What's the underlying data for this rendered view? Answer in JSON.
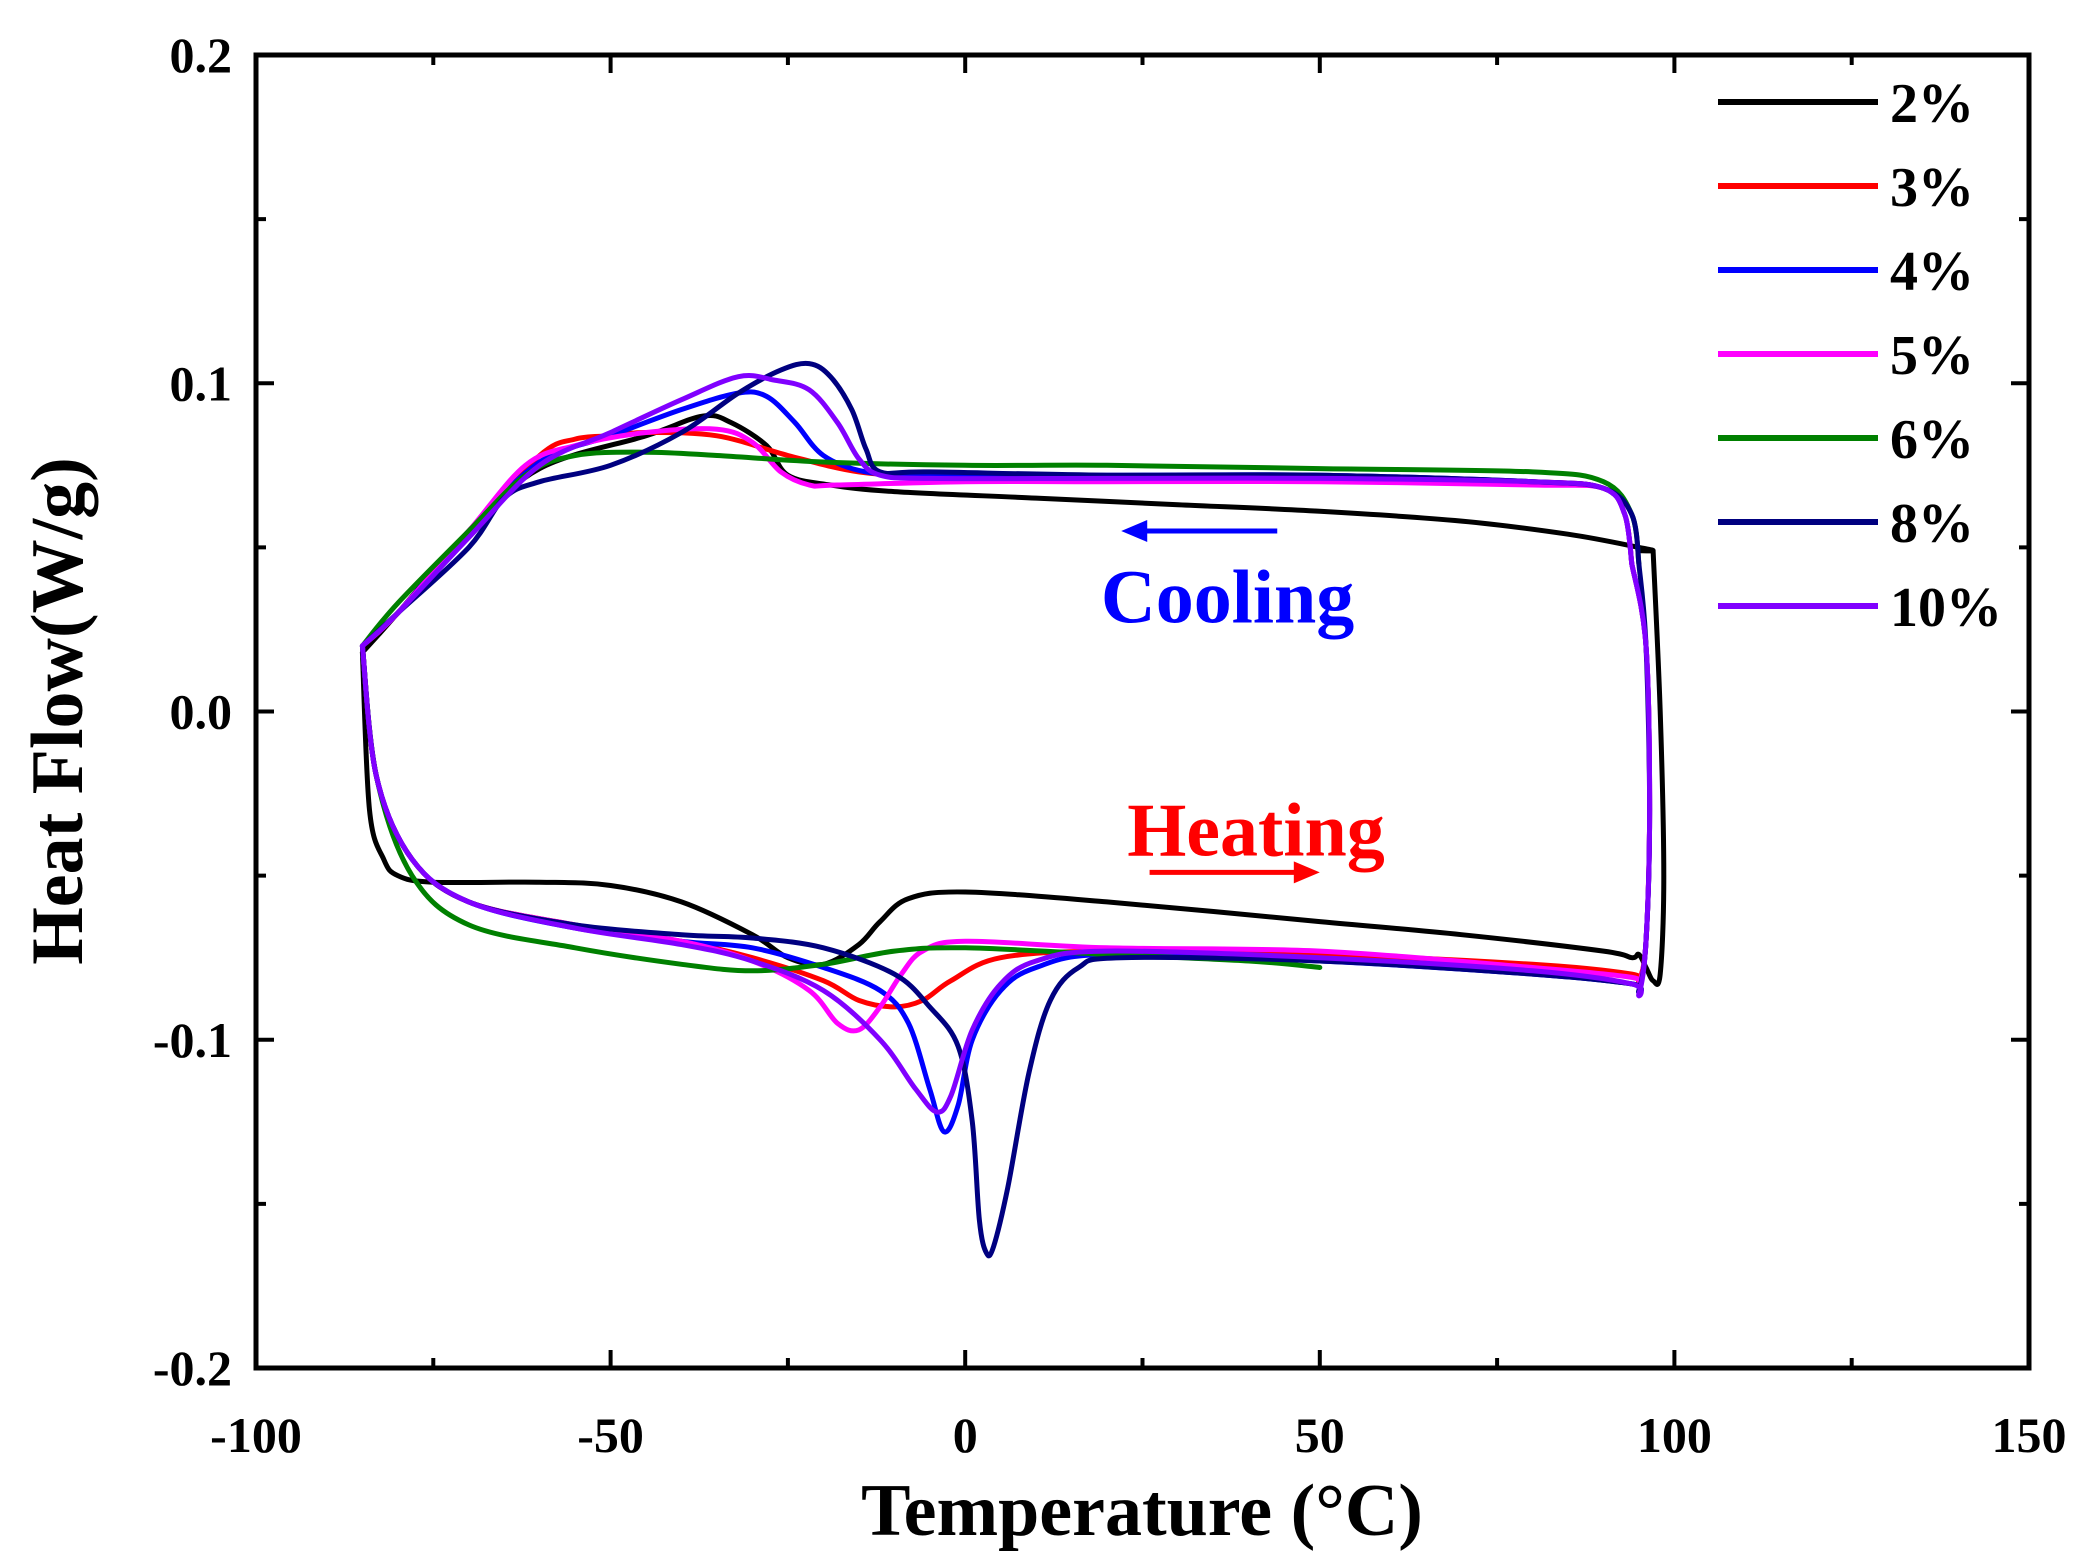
{
  "chart_data": {
    "type": "line",
    "title": "",
    "xlabel": "Temperature (°C)",
    "ylabel": "Heat Flow(W/g)",
    "xlim": [
      -100,
      150
    ],
    "ylim": [
      -0.2,
      0.2
    ],
    "xticks": [
      -100,
      -50,
      0,
      50,
      100,
      150
    ],
    "xtick_labels": [
      "-100",
      "-50",
      "0",
      "50",
      "100",
      "150"
    ],
    "yticks": [
      -0.2,
      -0.1,
      0.0,
      0.1,
      0.2
    ],
    "ytick_labels": [
      "-0.2",
      "-0.1",
      "0.0",
      "0.1",
      "0.2"
    ],
    "grid": false,
    "legend_position": "top-right",
    "annotations": [
      {
        "text": "Cooling",
        "x": 37,
        "y": 0.035,
        "color": "#0000ff",
        "arrow": {
          "from": [
            44,
            0.055
          ],
          "to": [
            22,
            0.055
          ],
          "color": "#0000ff"
        }
      },
      {
        "text": "Heating",
        "x": 41,
        "y": -0.036,
        "color": "#ff0000",
        "arrow": {
          "from": [
            26,
            -0.049
          ],
          "to": [
            50,
            -0.049
          ],
          "color": "#ff0000"
        }
      }
    ],
    "series": [
      {
        "name": "2%",
        "color": "#000000",
        "cooling": [
          [
            95,
            0.049
          ],
          [
            97,
            0.049
          ],
          [
            95,
            0.05
          ],
          [
            85,
            0.054
          ],
          [
            70,
            0.058
          ],
          [
            50,
            0.061
          ],
          [
            30,
            0.063
          ],
          [
            10,
            0.065
          ],
          [
            -10,
            0.067
          ],
          [
            -19,
            0.069
          ],
          [
            -25,
            0.072
          ],
          [
            -28,
            0.081
          ],
          [
            -33,
            0.088
          ],
          [
            -37,
            0.09
          ],
          [
            -45,
            0.084
          ],
          [
            -60,
            0.074
          ],
          [
            -70,
            0.055
          ],
          [
            -80,
            0.03
          ],
          [
            -85,
            0.018
          ]
        ],
        "heating": [
          [
            -85,
            0.018
          ],
          [
            -84,
            -0.03
          ],
          [
            -82,
            -0.045
          ],
          [
            -80,
            -0.05
          ],
          [
            -75,
            -0.052
          ],
          [
            -60,
            -0.052
          ],
          [
            -50,
            -0.053
          ],
          [
            -40,
            -0.058
          ],
          [
            -30,
            -0.068
          ],
          [
            -25,
            -0.075
          ],
          [
            -20,
            -0.077
          ],
          [
            -15,
            -0.071
          ],
          [
            -12,
            -0.064
          ],
          [
            -8,
            -0.057
          ],
          [
            0,
            -0.055
          ],
          [
            20,
            -0.058
          ],
          [
            50,
            -0.064
          ],
          [
            70,
            -0.068
          ],
          [
            90,
            -0.073
          ],
          [
            94,
            -0.075
          ],
          [
            95,
            -0.074
          ],
          [
            96,
            -0.078
          ],
          [
            97,
            -0.082
          ],
          [
            98,
            -0.08
          ],
          [
            98.5,
            -0.05
          ],
          [
            98,
            0.0
          ],
          [
            97,
            0.049
          ]
        ]
      },
      {
        "name": "3%",
        "color": "#ff0000",
        "cooling": [
          [
            94,
            0.045
          ],
          [
            93,
            0.06
          ],
          [
            90,
            0.068
          ],
          [
            80,
            0.07
          ],
          [
            50,
            0.071
          ],
          [
            20,
            0.071
          ],
          [
            -5,
            0.072
          ],
          [
            -15,
            0.073
          ],
          [
            -25,
            0.078
          ],
          [
            -35,
            0.084
          ],
          [
            -45,
            0.085
          ],
          [
            -50,
            0.084
          ],
          [
            -55,
            0.083
          ],
          [
            -60,
            0.078
          ],
          [
            -70,
            0.055
          ],
          [
            -80,
            0.03
          ],
          [
            -85,
            0.02
          ]
        ],
        "heating": [
          [
            -85,
            0.02
          ],
          [
            -83,
            -0.02
          ],
          [
            -78,
            -0.045
          ],
          [
            -70,
            -0.058
          ],
          [
            -55,
            -0.065
          ],
          [
            -40,
            -0.07
          ],
          [
            -30,
            -0.075
          ],
          [
            -20,
            -0.082
          ],
          [
            -15,
            -0.088
          ],
          [
            -10,
            -0.09
          ],
          [
            -6,
            -0.088
          ],
          [
            -2,
            -0.082
          ],
          [
            5,
            -0.075
          ],
          [
            20,
            -0.073
          ],
          [
            50,
            -0.074
          ],
          [
            80,
            -0.077
          ],
          [
            94,
            -0.08
          ],
          [
            95,
            -0.082
          ],
          [
            96,
            -0.07
          ],
          [
            96.5,
            -0.03
          ],
          [
            96,
            0.02
          ],
          [
            94,
            0.045
          ]
        ]
      },
      {
        "name": "4%",
        "color": "#0000ff",
        "cooling": [
          [
            94,
            0.045
          ],
          [
            93,
            0.06
          ],
          [
            90,
            0.068
          ],
          [
            80,
            0.07
          ],
          [
            50,
            0.072
          ],
          [
            20,
            0.072
          ],
          [
            -5,
            0.072
          ],
          [
            -14,
            0.073
          ],
          [
            -20,
            0.078
          ],
          [
            -24,
            0.088
          ],
          [
            -28,
            0.096
          ],
          [
            -32,
            0.097
          ],
          [
            -40,
            0.092
          ],
          [
            -50,
            0.084
          ],
          [
            -60,
            0.076
          ],
          [
            -70,
            0.055
          ],
          [
            -80,
            0.03
          ],
          [
            -85,
            0.02
          ]
        ],
        "heating": [
          [
            -85,
            0.02
          ],
          [
            -83,
            -0.02
          ],
          [
            -78,
            -0.045
          ],
          [
            -70,
            -0.058
          ],
          [
            -55,
            -0.066
          ],
          [
            -40,
            -0.07
          ],
          [
            -30,
            -0.072
          ],
          [
            -20,
            -0.078
          ],
          [
            -12,
            -0.085
          ],
          [
            -8,
            -0.095
          ],
          [
            -5,
            -0.115
          ],
          [
            -3,
            -0.128
          ],
          [
            -1,
            -0.12
          ],
          [
            1,
            -0.1
          ],
          [
            5,
            -0.085
          ],
          [
            10,
            -0.078
          ],
          [
            20,
            -0.074
          ],
          [
            50,
            -0.076
          ],
          [
            80,
            -0.08
          ],
          [
            94,
            -0.083
          ],
          [
            95,
            -0.085
          ],
          [
            96,
            -0.07
          ],
          [
            96.5,
            -0.03
          ],
          [
            96,
            0.02
          ],
          [
            94,
            0.045
          ]
        ]
      },
      {
        "name": "5%",
        "color": "#ff00ff",
        "cooling": [
          [
            94,
            0.045
          ],
          [
            93,
            0.06
          ],
          [
            90,
            0.068
          ],
          [
            80,
            0.069
          ],
          [
            50,
            0.07
          ],
          [
            20,
            0.07
          ],
          [
            0,
            0.07
          ],
          [
            -18,
            0.069
          ],
          [
            -22,
            0.069
          ],
          [
            -26,
            0.073
          ],
          [
            -30,
            0.082
          ],
          [
            -35,
            0.086
          ],
          [
            -45,
            0.085
          ],
          [
            -55,
            0.081
          ],
          [
            -62,
            0.075
          ],
          [
            -70,
            0.055
          ],
          [
            -80,
            0.03
          ],
          [
            -85,
            0.02
          ]
        ],
        "heating": [
          [
            -85,
            0.02
          ],
          [
            -83,
            -0.02
          ],
          [
            -78,
            -0.045
          ],
          [
            -70,
            -0.058
          ],
          [
            -55,
            -0.065
          ],
          [
            -40,
            -0.07
          ],
          [
            -30,
            -0.076
          ],
          [
            -22,
            -0.085
          ],
          [
            -18,
            -0.095
          ],
          [
            -15,
            -0.097
          ],
          [
            -12,
            -0.09
          ],
          [
            -9,
            -0.08
          ],
          [
            -6,
            -0.073
          ],
          [
            0,
            -0.07
          ],
          [
            20,
            -0.072
          ],
          [
            50,
            -0.073
          ],
          [
            80,
            -0.078
          ],
          [
            94,
            -0.081
          ],
          [
            95,
            -0.083
          ],
          [
            96,
            -0.07
          ],
          [
            96.5,
            -0.03
          ],
          [
            96,
            0.02
          ],
          [
            94,
            0.045
          ]
        ]
      },
      {
        "name": "6%",
        "color": "#008000",
        "cooling": [
          [
            95,
            0.045
          ],
          [
            94,
            0.06
          ],
          [
            90,
            0.07
          ],
          [
            80,
            0.073
          ],
          [
            50,
            0.074
          ],
          [
            20,
            0.075
          ],
          [
            0,
            0.075
          ],
          [
            -20,
            0.076
          ],
          [
            -35,
            0.078
          ],
          [
            -45,
            0.079
          ],
          [
            -55,
            0.078
          ],
          [
            -62,
            0.072
          ],
          [
            -70,
            0.055
          ],
          [
            -80,
            0.033
          ],
          [
            -85,
            0.02
          ]
        ],
        "heating": [
          [
            -85,
            0.02
          ],
          [
            -83,
            -0.02
          ],
          [
            -78,
            -0.05
          ],
          [
            -70,
            -0.065
          ],
          [
            -55,
            -0.072
          ],
          [
            -40,
            -0.077
          ],
          [
            -30,
            -0.079
          ],
          [
            -20,
            -0.077
          ],
          [
            -10,
            -0.073
          ],
          [
            0,
            -0.072
          ],
          [
            20,
            -0.074
          ],
          [
            40,
            -0.076
          ],
          [
            50,
            -0.078
          ]
        ]
      },
      {
        "name": "8%",
        "color": "#000080",
        "cooling": [
          [
            95,
            0.045
          ],
          [
            94,
            0.06
          ],
          [
            90,
            0.068
          ],
          [
            80,
            0.07
          ],
          [
            50,
            0.072
          ],
          [
            20,
            0.072
          ],
          [
            -5,
            0.073
          ],
          [
            -12,
            0.073
          ],
          [
            -14,
            0.08
          ],
          [
            -16,
            0.092
          ],
          [
            -19,
            0.102
          ],
          [
            -22,
            0.106
          ],
          [
            -26,
            0.104
          ],
          [
            -32,
            0.097
          ],
          [
            -40,
            0.085
          ],
          [
            -50,
            0.075
          ],
          [
            -60,
            0.07
          ],
          [
            -65,
            0.065
          ],
          [
            -70,
            0.05
          ],
          [
            -80,
            0.03
          ],
          [
            -85,
            0.02
          ]
        ],
        "heating": [
          [
            -85,
            0.02
          ],
          [
            -83,
            -0.02
          ],
          [
            -78,
            -0.045
          ],
          [
            -70,
            -0.058
          ],
          [
            -55,
            -0.065
          ],
          [
            -40,
            -0.068
          ],
          [
            -30,
            -0.069
          ],
          [
            -20,
            -0.072
          ],
          [
            -10,
            -0.08
          ],
          [
            -5,
            -0.09
          ],
          [
            -1,
            -0.102
          ],
          [
            1,
            -0.125
          ],
          [
            2,
            -0.155
          ],
          [
            3,
            -0.165
          ],
          [
            4,
            -0.163
          ],
          [
            6,
            -0.145
          ],
          [
            9,
            -0.11
          ],
          [
            12,
            -0.088
          ],
          [
            16,
            -0.078
          ],
          [
            22,
            -0.075
          ],
          [
            50,
            -0.076
          ],
          [
            80,
            -0.08
          ],
          [
            94,
            -0.083
          ],
          [
            95,
            -0.085
          ],
          [
            96,
            -0.07
          ],
          [
            96.5,
            -0.03
          ],
          [
            96,
            0.02
          ],
          [
            95,
            0.045
          ]
        ]
      },
      {
        "name": "10%",
        "color": "#8000ff",
        "cooling": [
          [
            94,
            0.045
          ],
          [
            93,
            0.06
          ],
          [
            90,
            0.068
          ],
          [
            80,
            0.07
          ],
          [
            50,
            0.071
          ],
          [
            20,
            0.071
          ],
          [
            -5,
            0.071
          ],
          [
            -12,
            0.072
          ],
          [
            -15,
            0.077
          ],
          [
            -18,
            0.088
          ],
          [
            -22,
            0.098
          ],
          [
            -27,
            0.101
          ],
          [
            -32,
            0.102
          ],
          [
            -40,
            0.095
          ],
          [
            -50,
            0.085
          ],
          [
            -60,
            0.075
          ],
          [
            -70,
            0.053
          ],
          [
            -80,
            0.03
          ],
          [
            -85,
            0.02
          ]
        ],
        "heating": [
          [
            -85,
            0.02
          ],
          [
            -83,
            -0.02
          ],
          [
            -78,
            -0.045
          ],
          [
            -70,
            -0.058
          ],
          [
            -55,
            -0.066
          ],
          [
            -40,
            -0.071
          ],
          [
            -30,
            -0.076
          ],
          [
            -20,
            -0.085
          ],
          [
            -12,
            -0.1
          ],
          [
            -7,
            -0.115
          ],
          [
            -4,
            -0.122
          ],
          [
            -2,
            -0.117
          ],
          [
            1,
            -0.097
          ],
          [
            5,
            -0.083
          ],
          [
            10,
            -0.076
          ],
          [
            20,
            -0.073
          ],
          [
            50,
            -0.075
          ],
          [
            80,
            -0.079
          ],
          [
            94,
            -0.083
          ],
          [
            95,
            -0.086
          ],
          [
            96,
            -0.07
          ],
          [
            96.5,
            -0.03
          ],
          [
            96,
            0.02
          ],
          [
            94,
            0.045
          ]
        ]
      }
    ]
  }
}
